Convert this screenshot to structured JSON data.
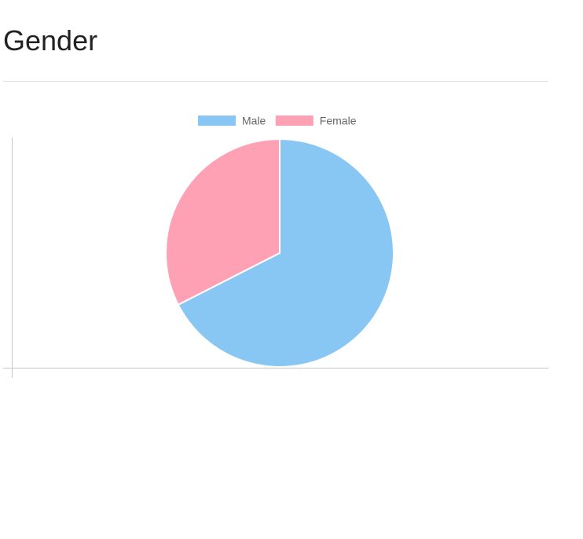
{
  "page": {
    "title": "Gender"
  },
  "chart_data": {
    "type": "pie",
    "categories": [
      "Male",
      "Female"
    ],
    "values": [
      67.5,
      32.5
    ],
    "colors": [
      "#88c7f4",
      "#ffa1b5"
    ],
    "legend_position": "top",
    "start_angle": "top, clockwise"
  }
}
